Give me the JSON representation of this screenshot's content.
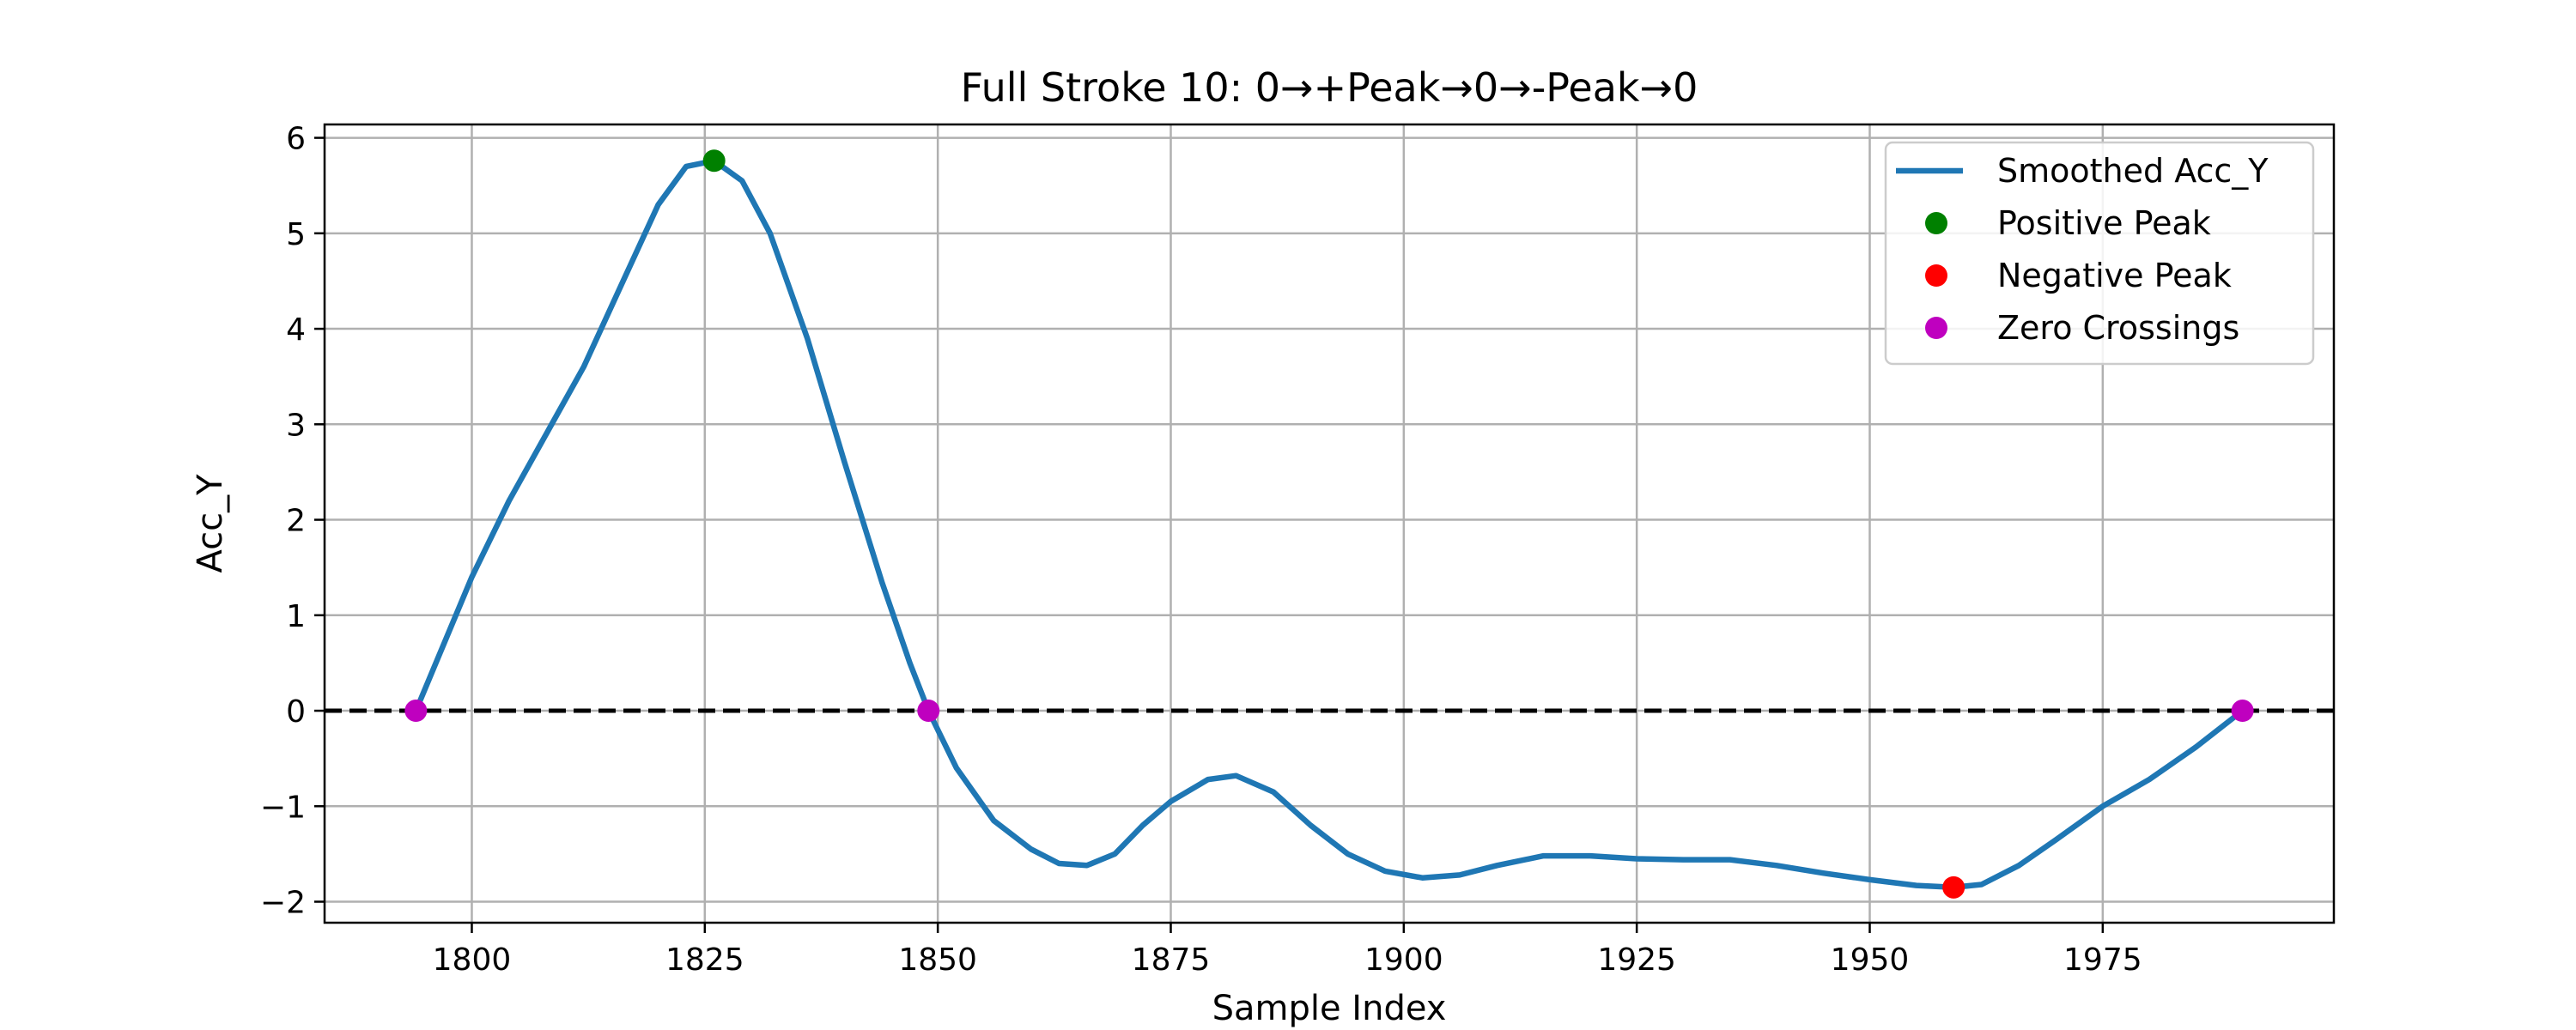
{
  "chart_data": {
    "type": "line",
    "title": "Full Stroke 10: 0→+Peak→0→-Peak→0",
    "xlabel": "Sample Index",
    "ylabel": "Acc_Y",
    "xlim": [
      1784.2,
      1999.8
    ],
    "ylim": [
      -2.22,
      6.14
    ],
    "xticks": [
      1800,
      1825,
      1850,
      1875,
      1900,
      1925,
      1950,
      1975
    ],
    "yticks": [
      -2,
      -1,
      0,
      1,
      2,
      3,
      4,
      5,
      6
    ],
    "grid": true,
    "legend_position": "upper right",
    "reference_line": {
      "y": 0,
      "style": "dashed",
      "color": "#000000"
    },
    "series": [
      {
        "name": "Smoothed Acc_Y",
        "kind": "line",
        "color": "#1f77b4",
        "x": [
          1794,
          1797,
          1800,
          1804,
          1808,
          1812,
          1816,
          1820,
          1823,
          1826,
          1829,
          1832,
          1836,
          1840,
          1844,
          1847,
          1849,
          1852,
          1856,
          1860,
          1863,
          1866,
          1869,
          1872,
          1875,
          1879,
          1882,
          1886,
          1890,
          1894,
          1898,
          1902,
          1906,
          1910,
          1915,
          1920,
          1925,
          1930,
          1935,
          1940,
          1945,
          1950,
          1955,
          1959,
          1962,
          1966,
          1970,
          1975,
          1980,
          1985,
          1990
        ],
        "y": [
          0,
          0.7,
          1.4,
          2.2,
          2.9,
          3.6,
          4.45,
          5.3,
          5.7,
          5.76,
          5.55,
          5.0,
          3.9,
          2.6,
          1.35,
          0.5,
          0.0,
          -0.6,
          -1.15,
          -1.45,
          -1.6,
          -1.62,
          -1.5,
          -1.2,
          -0.95,
          -0.72,
          -0.68,
          -0.85,
          -1.2,
          -1.5,
          -1.68,
          -1.75,
          -1.72,
          -1.62,
          -1.52,
          -1.52,
          -1.55,
          -1.56,
          -1.56,
          -1.62,
          -1.7,
          -1.77,
          -1.83,
          -1.85,
          -1.82,
          -1.62,
          -1.35,
          -1.0,
          -0.72,
          -0.38,
          0.0
        ]
      },
      {
        "name": "Positive Peak",
        "kind": "marker",
        "color": "#008000",
        "x": [
          1826
        ],
        "y": [
          5.76
        ]
      },
      {
        "name": "Negative Peak",
        "kind": "marker",
        "color": "#ff0000",
        "x": [
          1959
        ],
        "y": [
          -1.85
        ]
      },
      {
        "name": "Zero Crossings",
        "kind": "marker",
        "color": "#bf00bf",
        "x": [
          1794,
          1849,
          1990
        ],
        "y": [
          0,
          0,
          0
        ]
      }
    ]
  }
}
